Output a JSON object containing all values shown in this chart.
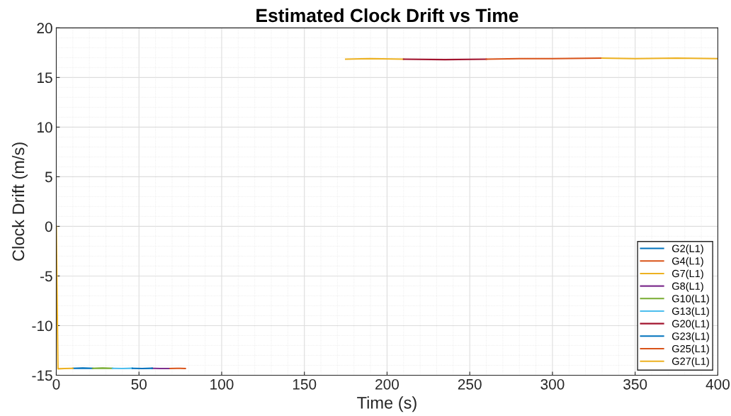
{
  "chart_data": {
    "type": "line",
    "title": "Estimated Clock Drift vs Time",
    "xlabel": "Time (s)",
    "ylabel": "Clock Drift (m/s)",
    "xlim": [
      0,
      400
    ],
    "ylim": [
      -15,
      20
    ],
    "xticks": [
      0,
      50,
      100,
      150,
      200,
      250,
      300,
      350,
      400
    ],
    "yticks": [
      -15,
      -10,
      -5,
      0,
      5,
      10,
      15,
      20
    ],
    "grid": true,
    "legend": "bottom right",
    "line_style": "solid",
    "marker": "none",
    "series": [
      {
        "name": "G2(L1)",
        "color": "#0072bd",
        "x": [
          10,
          16,
          22
        ],
        "values": [
          -14.3,
          -14.28,
          -14.3
        ]
      },
      {
        "name": "G4(L1)",
        "color": "#d95319",
        "x": [
          68,
          73,
          78
        ],
        "values": [
          -14.32,
          -14.3,
          -14.32
        ]
      },
      {
        "name": "G7(L1)",
        "color": "#edb120",
        "x": [
          175,
          190,
          210
        ],
        "values": [
          16.85,
          16.9,
          16.85
        ]
      },
      {
        "name": "G8(L1)",
        "color": "#7e2f8e",
        "x": [
          58,
          63,
          68
        ],
        "values": [
          -14.3,
          -14.32,
          -14.32
        ]
      },
      {
        "name": "G10(L1)",
        "color": "#77ac30",
        "x": [
          22,
          28,
          34
        ],
        "values": [
          -14.3,
          -14.28,
          -14.3
        ]
      },
      {
        "name": "G13(L1)",
        "color": "#4dbeee",
        "x": [
          34,
          40,
          46
        ],
        "values": [
          -14.3,
          -14.32,
          -14.3
        ]
      },
      {
        "name": "G20(L1)",
        "color": "#a2142f",
        "x": [
          210,
          235,
          260
        ],
        "values": [
          16.85,
          16.8,
          16.85
        ]
      },
      {
        "name": "G23(L1)",
        "color": "#0072bd",
        "x": [
          46,
          52,
          58
        ],
        "values": [
          -14.3,
          -14.32,
          -14.3
        ]
      },
      {
        "name": "G25(L1)",
        "color": "#d95319",
        "x": [
          260,
          280,
          300,
          330
        ],
        "values": [
          16.85,
          16.9,
          16.9,
          16.95
        ]
      },
      {
        "name": "G27(L1)",
        "color": "#edb120",
        "x": [
          0,
          1,
          5,
          10,
          null,
          330,
          350,
          375,
          400
        ],
        "values": [
          0,
          -14.35,
          -14.32,
          -14.3,
          null,
          16.95,
          16.9,
          16.95,
          16.9
        ]
      }
    ]
  }
}
